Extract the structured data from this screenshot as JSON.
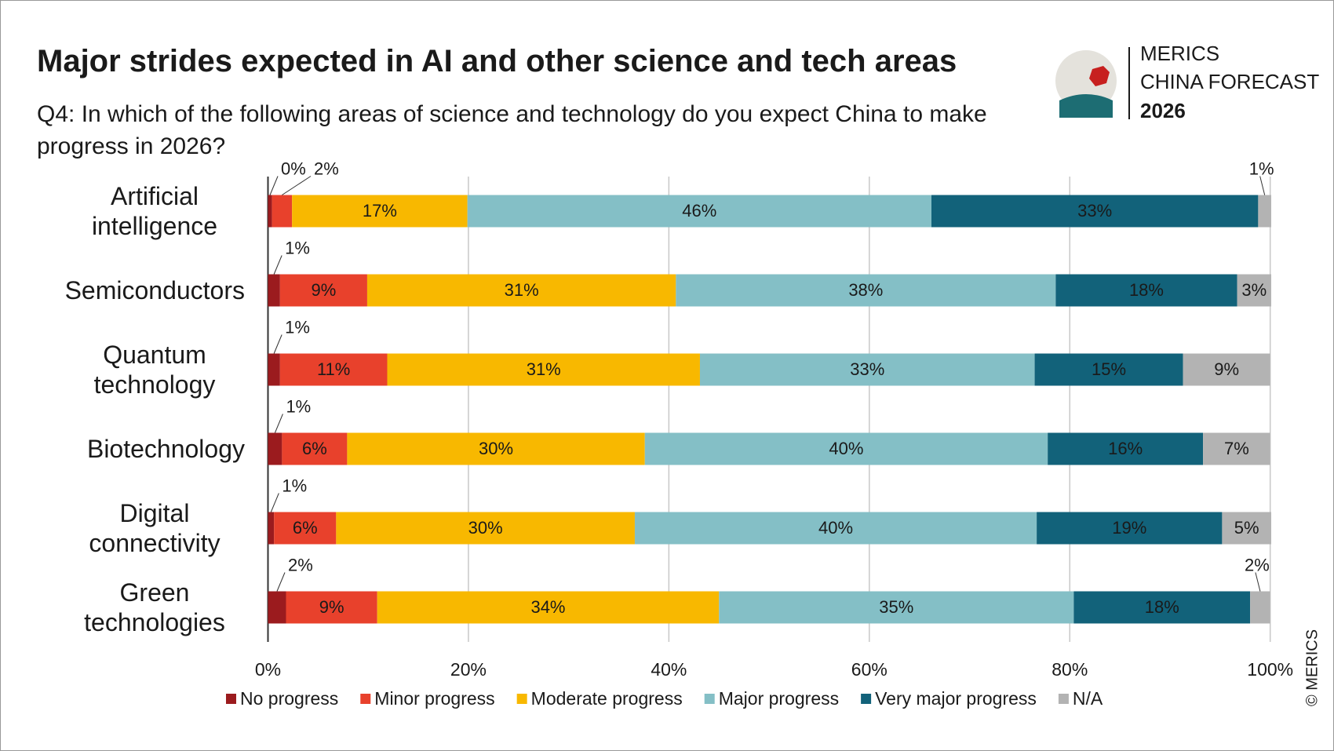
{
  "chart_data": {
    "type": "stacked-bar-horizontal",
    "title": "Major strides expected in AI and other science and tech areas",
    "subtitle": "Q4: In which of the following areas of science and technology do you expect China to make progress in 2026?",
    "branding": [
      "MERICS",
      "CHINA FORECAST",
      "2026"
    ],
    "credit": "© MERICS",
    "categories": [
      "Artificial intelligence",
      "Semiconductors",
      "Quantum technology",
      "Biotechnology",
      "Digital connectivity",
      "Green technologies"
    ],
    "series": [
      {
        "name": "No progress",
        "color": "#9b1b1e",
        "values": [
          0.4,
          1.2,
          1.2,
          1.4,
          0.6,
          1.8
        ],
        "value_labels": [
          "0%",
          "1%",
          "1%",
          "1%",
          "1%",
          "2%"
        ]
      },
      {
        "name": "Minor progress",
        "color": "#e8412c",
        "values": [
          2.0,
          8.7,
          10.7,
          6.5,
          6.2,
          9.1
        ],
        "value_labels": [
          "2%",
          "9%",
          "11%",
          "6%",
          "6%",
          "9%"
        ]
      },
      {
        "name": "Moderate progress",
        "color": "#f8b800",
        "values": [
          17.5,
          30.8,
          31.2,
          29.7,
          29.8,
          34.1
        ],
        "value_labels": [
          "17%",
          "31%",
          "31%",
          "30%",
          "30%",
          "34%"
        ]
      },
      {
        "name": "Major progress",
        "color": "#84bfc6",
        "values": [
          46.3,
          37.9,
          33.4,
          40.2,
          40.1,
          35.4
        ],
        "value_labels": [
          "46%",
          "38%",
          "33%",
          "40%",
          "40%",
          "35%"
        ]
      },
      {
        "name": "Very major progress",
        "color": "#12627a",
        "values": [
          32.6,
          18.1,
          14.8,
          15.5,
          18.5,
          17.6
        ],
        "value_labels": [
          "33%",
          "18%",
          "15%",
          "16%",
          "19%",
          "18%"
        ]
      },
      {
        "name": "N/A",
        "color": "#b3b3b3",
        "values": [
          1.3,
          3.4,
          8.7,
          6.7,
          4.9,
          2.0
        ],
        "value_labels": [
          "1%",
          "3%",
          "9%",
          "7%",
          "5%",
          "2%"
        ]
      }
    ],
    "xlim": [
      0,
      100
    ],
    "xticks": [
      {
        "value": 0,
        "label": "0%"
      },
      {
        "value": 20,
        "label": "20%"
      },
      {
        "value": 40,
        "label": "40%"
      },
      {
        "value": 60,
        "label": "60%"
      },
      {
        "value": 80,
        "label": "80%"
      },
      {
        "value": 100,
        "label": "100%"
      }
    ],
    "grid": true
  }
}
